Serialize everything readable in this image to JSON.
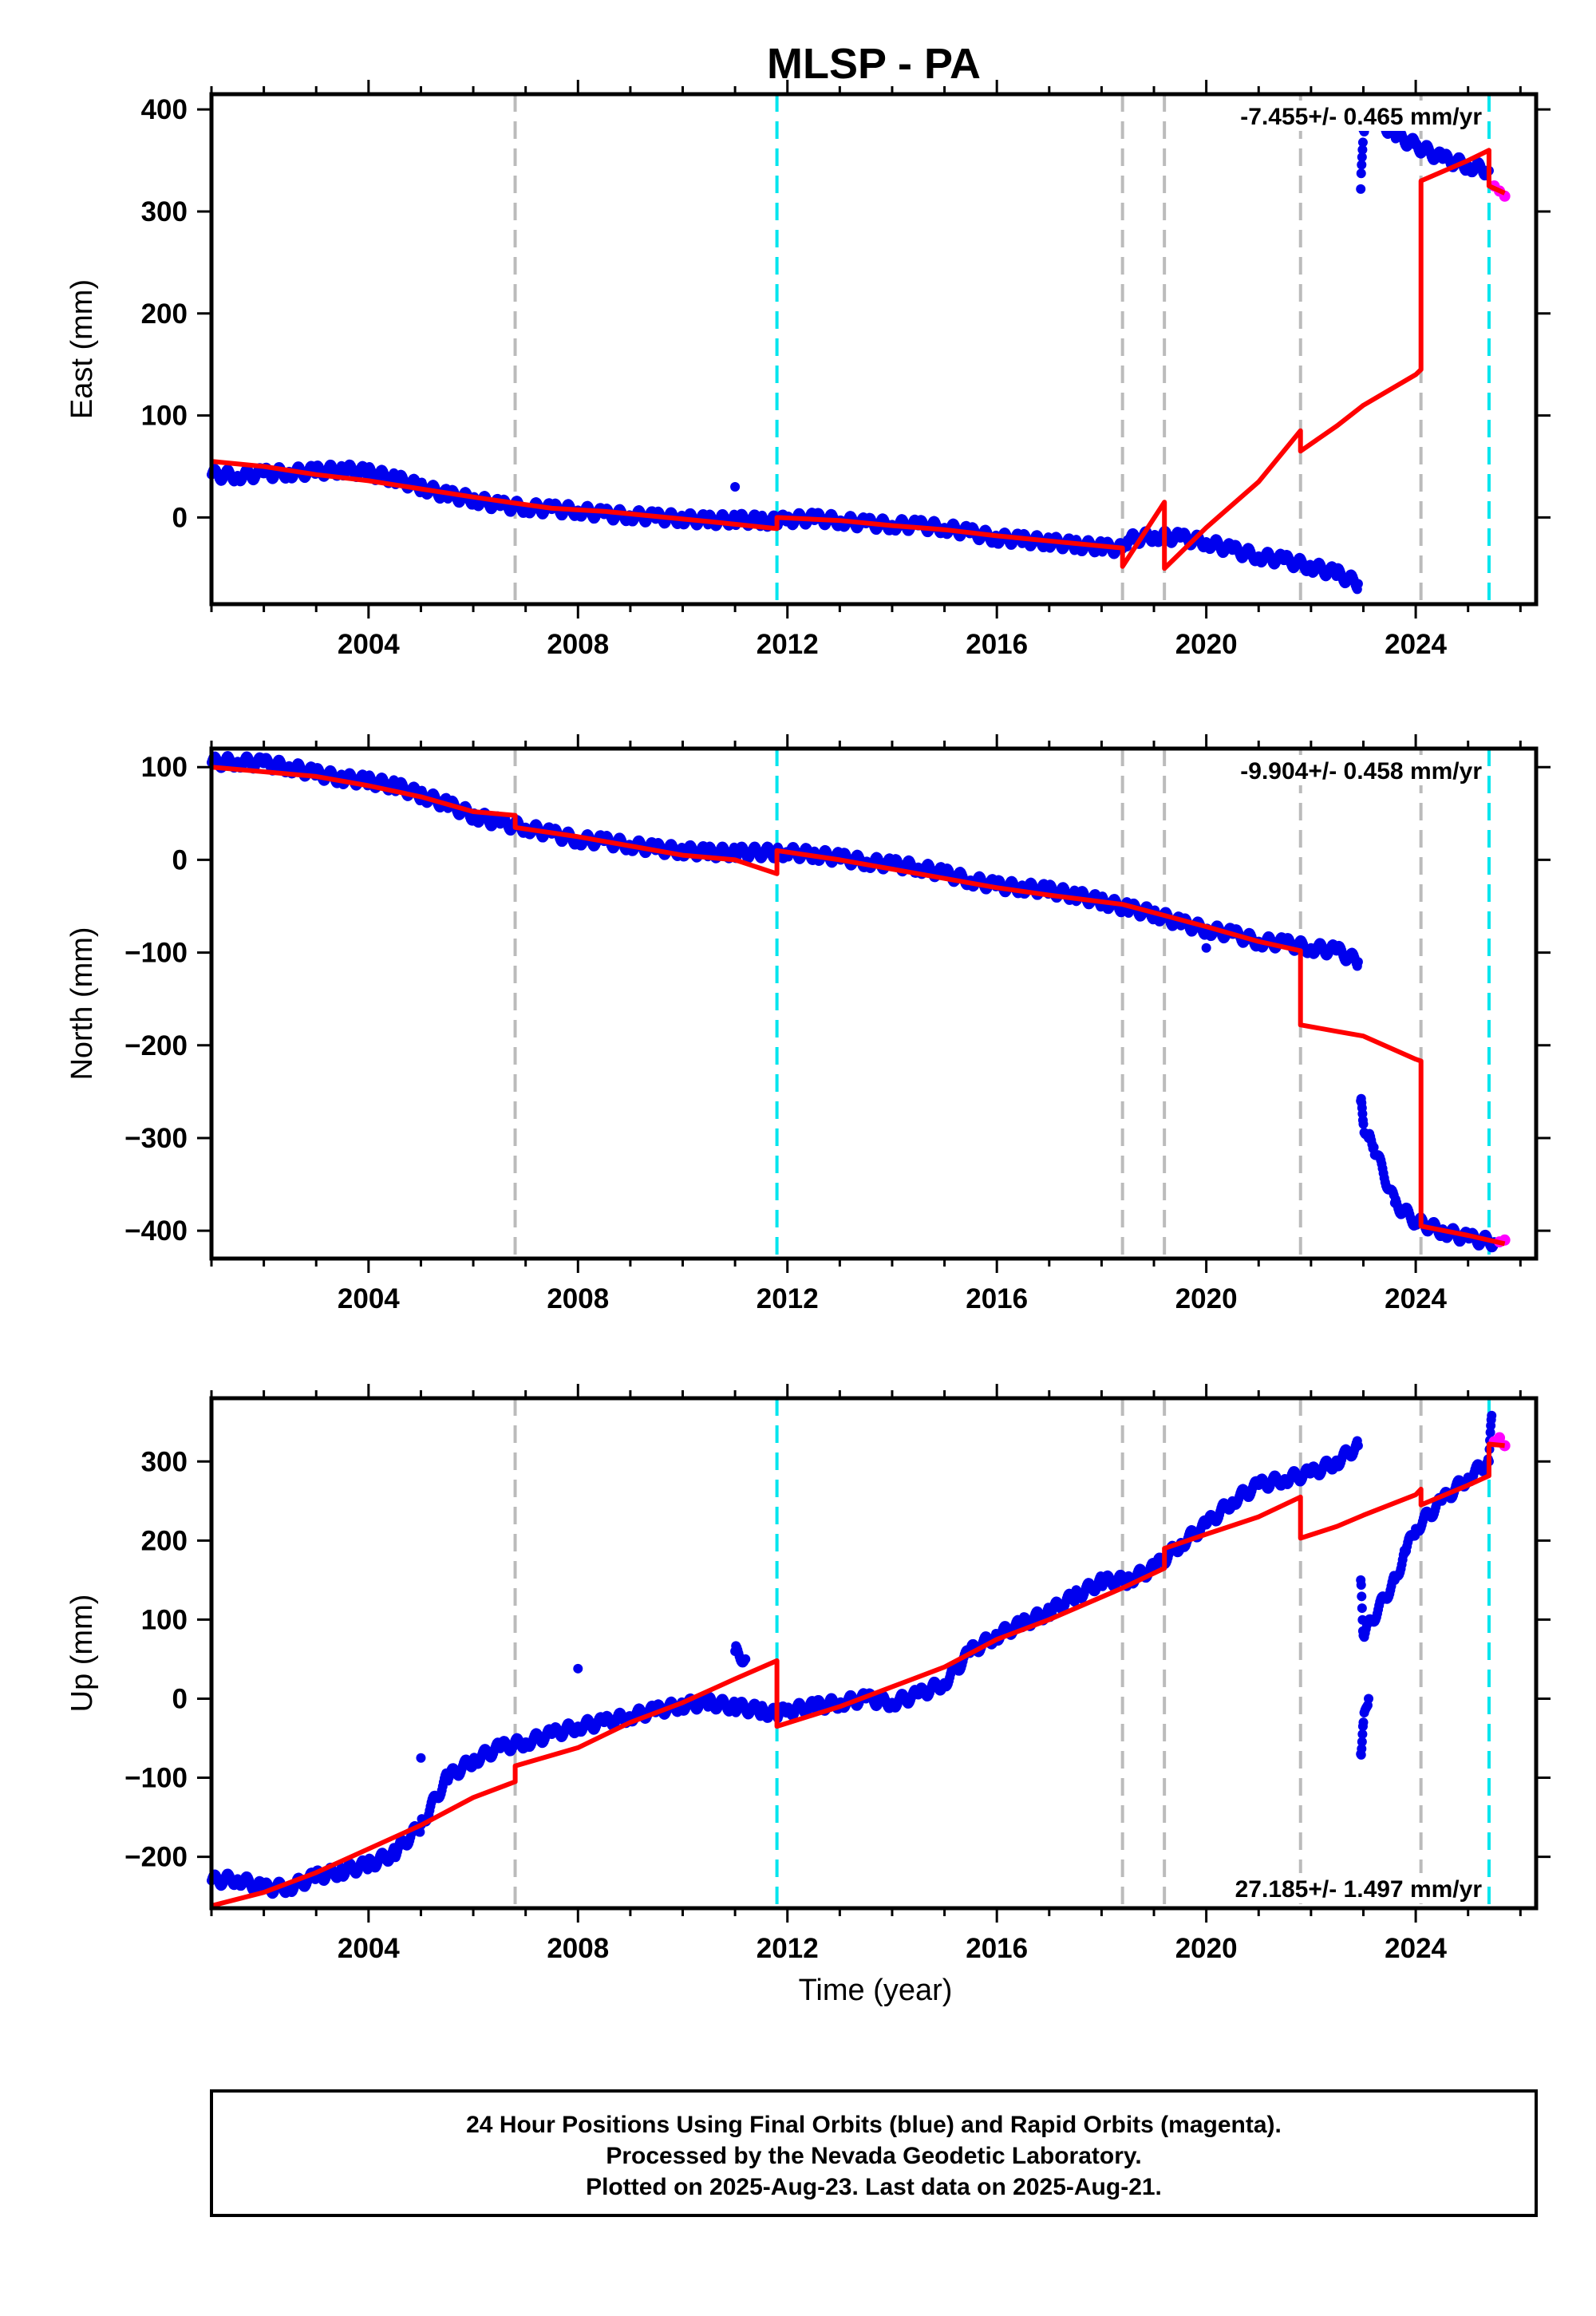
{
  "chart_data": [
    {
      "type": "scatter",
      "title": "MLSP - PA",
      "ylabel": "East (mm)",
      "xlabel": "",
      "xlim": [
        2001.0,
        2026.3
      ],
      "ylim": [
        -85,
        415
      ],
      "xticks": [
        2004,
        2008,
        2012,
        2016,
        2020,
        2024
      ],
      "xtick_labels": [
        "2004",
        "2008",
        "2012",
        "2016",
        "2020",
        "2024"
      ],
      "yticks": [
        0,
        100,
        200,
        300,
        400
      ],
      "ytick_labels": [
        "0",
        "100",
        "200",
        "300",
        "400"
      ],
      "rate_label": "-7.455+/- 0.465 mm/yr",
      "rate_position": "top-right",
      "grid": false,
      "gray_dashed_lines": [
        2006.8,
        2018.4,
        2019.2,
        2021.8,
        2024.1
      ],
      "cyan_dashed_lines": [
        2011.8,
        2025.4
      ],
      "final_orbits": [
        [
          2001.0,
          42
        ],
        [
          2001.5,
          41
        ],
        [
          2002.0,
          43
        ],
        [
          2002.5,
          44
        ],
        [
          2003.0,
          45
        ],
        [
          2003.5,
          47
        ],
        [
          2004.0,
          44
        ],
        [
          2004.5,
          38
        ],
        [
          2005.0,
          30
        ],
        [
          2005.5,
          22
        ],
        [
          2006.0,
          18
        ],
        [
          2006.5,
          12
        ],
        [
          2007.0,
          10
        ],
        [
          2007.5,
          8
        ],
        [
          2008.0,
          7
        ],
        [
          2008.5,
          3
        ],
        [
          2009.0,
          2
        ],
        [
          2009.5,
          0
        ],
        [
          2010.0,
          -1
        ],
        [
          2010.5,
          -3
        ],
        [
          2011.0,
          -2
        ],
        [
          2011.5,
          -3
        ],
        [
          2011.8,
          -4
        ],
        [
          2012.0,
          -2
        ],
        [
          2012.5,
          -1
        ],
        [
          2013.0,
          -3
        ],
        [
          2013.5,
          -6
        ],
        [
          2014.0,
          -7
        ],
        [
          2014.5,
          -8
        ],
        [
          2015.0,
          -10
        ],
        [
          2015.5,
          -15
        ],
        [
          2016.0,
          -20
        ],
        [
          2016.5,
          -22
        ],
        [
          2017.0,
          -24
        ],
        [
          2017.5,
          -27
        ],
        [
          2018.0,
          -29
        ],
        [
          2018.4,
          -31
        ],
        [
          2018.5,
          -22
        ],
        [
          2019.0,
          -18
        ],
        [
          2019.5,
          -20
        ],
        [
          2020.0,
          -24
        ],
        [
          2020.5,
          -32
        ],
        [
          2021.0,
          -38
        ],
        [
          2021.5,
          -42
        ],
        [
          2022.0,
          -48
        ],
        [
          2022.5,
          -55
        ],
        [
          2022.9,
          -65
        ],
        [
          2022.95,
          322
        ],
        [
          2023.0,
          380
        ],
        [
          2023.1,
          400
        ],
        [
          2023.6,
          375
        ],
        [
          2024.0,
          365
        ],
        [
          2024.5,
          352
        ],
        [
          2025.0,
          345
        ],
        [
          2025.4,
          340
        ],
        [
          2011.0,
          30
        ]
      ],
      "rapid_orbits": [
        [
          2025.5,
          325
        ],
        [
          2025.6,
          320
        ],
        [
          2025.7,
          315
        ]
      ],
      "model": [
        [
          2001.0,
          55
        ],
        [
          2002.0,
          50
        ],
        [
          2003.0,
          42
        ],
        [
          2004.0,
          36
        ],
        [
          2005.0,
          28
        ],
        [
          2006.0,
          20
        ],
        [
          2006.8,
          14
        ],
        [
          2007.5,
          9
        ],
        [
          2008.5,
          6
        ],
        [
          2009.5,
          1
        ],
        [
          2010.5,
          -4
        ],
        [
          2011.8,
          -11
        ],
        [
          2011.8,
          0
        ],
        [
          2013.0,
          -3
        ],
        [
          2014.0,
          -8
        ],
        [
          2015.0,
          -12
        ],
        [
          2016.0,
          -18
        ],
        [
          2017.0,
          -23
        ],
        [
          2018.4,
          -30
        ],
        [
          2018.4,
          -48
        ],
        [
          2019.2,
          15
        ],
        [
          2019.2,
          -50
        ],
        [
          2020.0,
          -10
        ],
        [
          2021.0,
          35
        ],
        [
          2021.8,
          85
        ],
        [
          2021.8,
          65
        ],
        [
          2022.5,
          90
        ],
        [
          2023.0,
          110
        ],
        [
          2024.0,
          140
        ],
        [
          2024.1,
          145
        ],
        [
          2024.1,
          330
        ],
        [
          2025.0,
          350
        ],
        [
          2025.4,
          360
        ],
        [
          2025.4,
          325
        ],
        [
          2025.7,
          318
        ]
      ]
    },
    {
      "type": "scatter",
      "title": "",
      "ylabel": "North (mm)",
      "xlabel": "",
      "xlim": [
        2001.0,
        2026.3
      ],
      "ylim": [
        -430,
        120
      ],
      "xticks": [
        2004,
        2008,
        2012,
        2016,
        2020,
        2024
      ],
      "xtick_labels": [
        "2004",
        "2008",
        "2012",
        "2016",
        "2020",
        "2024"
      ],
      "yticks": [
        100,
        0,
        -100,
        -200,
        -300,
        -400
      ],
      "ytick_labels": [
        "100",
        "0",
        "−100",
        "−200",
        "−300",
        "−400"
      ],
      "rate_label": "-9.904+/- 0.458 mm/yr",
      "rate_position": "top-right",
      "grid": false,
      "gray_dashed_lines": [
        2006.8,
        2018.4,
        2019.2,
        2021.8,
        2024.1
      ],
      "cyan_dashed_lines": [
        2011.8,
        2025.4
      ],
      "final_orbits": [
        [
          2001.0,
          105
        ],
        [
          2001.5,
          106
        ],
        [
          2002.0,
          104
        ],
        [
          2002.5,
          100
        ],
        [
          2003.0,
          93
        ],
        [
          2003.5,
          88
        ],
        [
          2004.0,
          85
        ],
        [
          2004.5,
          80
        ],
        [
          2005.0,
          70
        ],
        [
          2005.5,
          60
        ],
        [
          2006.0,
          48
        ],
        [
          2006.5,
          40
        ],
        [
          2007.0,
          35
        ],
        [
          2007.5,
          28
        ],
        [
          2008.0,
          22
        ],
        [
          2008.5,
          20
        ],
        [
          2009.0,
          16
        ],
        [
          2009.5,
          12
        ],
        [
          2010.0,
          10
        ],
        [
          2010.5,
          8
        ],
        [
          2011.0,
          8
        ],
        [
          2011.8,
          8
        ],
        [
          2012.0,
          8
        ],
        [
          2012.5,
          6
        ],
        [
          2013.0,
          2
        ],
        [
          2013.5,
          -2
        ],
        [
          2014.0,
          -5
        ],
        [
          2014.5,
          -8
        ],
        [
          2015.0,
          -15
        ],
        [
          2015.5,
          -22
        ],
        [
          2016.0,
          -28
        ],
        [
          2016.5,
          -30
        ],
        [
          2017.0,
          -33
        ],
        [
          2017.5,
          -38
        ],
        [
          2018.0,
          -45
        ],
        [
          2018.5,
          -52
        ],
        [
          2019.0,
          -58
        ],
        [
          2019.5,
          -68
        ],
        [
          2020.0,
          -75
        ],
        [
          2020.5,
          -80
        ],
        [
          2021.0,
          -88
        ],
        [
          2021.5,
          -90
        ],
        [
          2022.0,
          -95
        ],
        [
          2022.5,
          -98
        ],
        [
          2022.9,
          -110
        ],
        [
          2022.95,
          -260
        ],
        [
          2023.0,
          -285
        ],
        [
          2023.1,
          -300
        ],
        [
          2023.2,
          -310
        ],
        [
          2023.6,
          -370
        ],
        [
          2024.0,
          -390
        ],
        [
          2024.5,
          -400
        ],
        [
          2025.0,
          -408
        ],
        [
          2025.5,
          -412
        ],
        [
          2020.0,
          -95
        ]
      ],
      "rapid_orbits": [
        [
          2025.6,
          -412
        ],
        [
          2025.7,
          -410
        ]
      ],
      "model": [
        [
          2001.0,
          100
        ],
        [
          2002.0,
          95
        ],
        [
          2003.0,
          90
        ],
        [
          2004.0,
          80
        ],
        [
          2005.0,
          68
        ],
        [
          2006.0,
          52
        ],
        [
          2006.8,
          48
        ],
        [
          2006.8,
          35
        ],
        [
          2008.0,
          25
        ],
        [
          2009.0,
          15
        ],
        [
          2010.0,
          5
        ],
        [
          2011.0,
          0
        ],
        [
          2011.8,
          -15
        ],
        [
          2011.8,
          10
        ],
        [
          2013.0,
          0
        ],
        [
          2014.0,
          -10
        ],
        [
          2015.0,
          -20
        ],
        [
          2016.0,
          -30
        ],
        [
          2017.0,
          -38
        ],
        [
          2018.4,
          -48
        ],
        [
          2019.2,
          -60
        ],
        [
          2020.0,
          -72
        ],
        [
          2021.0,
          -88
        ],
        [
          2021.8,
          -98
        ],
        [
          2021.8,
          -178
        ],
        [
          2022.5,
          -185
        ],
        [
          2023.0,
          -190
        ],
        [
          2024.0,
          -215
        ],
        [
          2024.1,
          -217
        ],
        [
          2024.1,
          -395
        ],
        [
          2025.0,
          -405
        ],
        [
          2025.7,
          -414
        ]
      ]
    },
    {
      "type": "scatter",
      "title": "",
      "ylabel": "Up (mm)",
      "xlabel": "Time (year)",
      "xlim": [
        2001.0,
        2026.3
      ],
      "ylim": [
        -265,
        380
      ],
      "xticks": [
        2004,
        2008,
        2012,
        2016,
        2020,
        2024
      ],
      "xtick_labels": [
        "2004",
        "2008",
        "2012",
        "2016",
        "2020",
        "2024"
      ],
      "yticks": [
        300,
        200,
        100,
        0,
        -100,
        -200
      ],
      "ytick_labels": [
        "300",
        "200",
        "100",
        "0",
        "−100",
        "−200"
      ],
      "rate_label": "27.185+/- 1.497 mm/yr",
      "rate_position": "bottom-right",
      "grid": false,
      "gray_dashed_lines": [
        2006.8,
        2018.4,
        2019.2,
        2021.8,
        2024.1
      ],
      "cyan_dashed_lines": [
        2011.8,
        2025.4
      ],
      "final_orbits": [
        [
          2001.0,
          -230
        ],
        [
          2001.5,
          -228
        ],
        [
          2002.0,
          -240
        ],
        [
          2002.5,
          -238
        ],
        [
          2003.0,
          -225
        ],
        [
          2003.5,
          -218
        ],
        [
          2004.0,
          -210
        ],
        [
          2004.5,
          -195
        ],
        [
          2005.0,
          -160
        ],
        [
          2005.5,
          -100
        ],
        [
          2006.0,
          -78
        ],
        [
          2006.5,
          -62
        ],
        [
          2007.0,
          -55
        ],
        [
          2007.5,
          -45
        ],
        [
          2008.0,
          -35
        ],
        [
          2008.5,
          -30
        ],
        [
          2009.0,
          -22
        ],
        [
          2009.5,
          -15
        ],
        [
          2010.0,
          -8
        ],
        [
          2010.5,
          -5
        ],
        [
          2011.0,
          -10
        ],
        [
          2011.5,
          -15
        ],
        [
          2011.8,
          -20
        ],
        [
          2012.0,
          -15
        ],
        [
          2012.5,
          -10
        ],
        [
          2013.0,
          -5
        ],
        [
          2013.5,
          0
        ],
        [
          2014.0,
          -5
        ],
        [
          2014.5,
          5
        ],
        [
          2015.0,
          20
        ],
        [
          2015.5,
          60
        ],
        [
          2016.0,
          80
        ],
        [
          2016.5,
          95
        ],
        [
          2017.0,
          110
        ],
        [
          2017.5,
          130
        ],
        [
          2018.0,
          148
        ],
        [
          2018.5,
          150
        ],
        [
          2019.0,
          165
        ],
        [
          2019.5,
          195
        ],
        [
          2020.0,
          220
        ],
        [
          2020.5,
          250
        ],
        [
          2021.0,
          270
        ],
        [
          2021.5,
          278
        ],
        [
          2022.0,
          285
        ],
        [
          2022.5,
          300
        ],
        [
          2022.9,
          320
        ],
        [
          2022.95,
          -70
        ],
        [
          2023.0,
          -30
        ],
        [
          2023.1,
          0
        ],
        [
          2022.95,
          150
        ],
        [
          2023.0,
          80
        ],
        [
          2023.6,
          150
        ],
        [
          2023.8,
          185
        ],
        [
          2024.0,
          215
        ],
        [
          2024.5,
          250
        ],
        [
          2025.0,
          280
        ],
        [
          2025.4,
          300
        ],
        [
          2025.45,
          358
        ],
        [
          2008.0,
          38
        ],
        [
          2005.0,
          -75
        ],
        [
          2011.0,
          60
        ],
        [
          2011.2,
          50
        ]
      ],
      "rapid_orbits": [
        [
          2025.5,
          325
        ],
        [
          2025.6,
          330
        ],
        [
          2025.7,
          320
        ]
      ],
      "model": [
        [
          2001.0,
          -262
        ],
        [
          2002.0,
          -245
        ],
        [
          2003.0,
          -220
        ],
        [
          2004.0,
          -190
        ],
        [
          2005.0,
          -160
        ],
        [
          2006.0,
          -125
        ],
        [
          2006.8,
          -105
        ],
        [
          2006.8,
          -85
        ],
        [
          2008.0,
          -62
        ],
        [
          2009.0,
          -30
        ],
        [
          2010.0,
          -5
        ],
        [
          2011.0,
          25
        ],
        [
          2011.8,
          48
        ],
        [
          2011.8,
          -35
        ],
        [
          2013.0,
          -10
        ],
        [
          2014.0,
          15
        ],
        [
          2015.0,
          40
        ],
        [
          2016.0,
          75
        ],
        [
          2017.0,
          100
        ],
        [
          2018.4,
          140
        ],
        [
          2019.2,
          165
        ],
        [
          2019.2,
          190
        ],
        [
          2020.0,
          208
        ],
        [
          2021.0,
          230
        ],
        [
          2021.8,
          255
        ],
        [
          2021.8,
          203
        ],
        [
          2022.5,
          218
        ],
        [
          2023.0,
          232
        ],
        [
          2024.0,
          258
        ],
        [
          2024.1,
          265
        ],
        [
          2024.1,
          245
        ],
        [
          2025.0,
          270
        ],
        [
          2025.4,
          282
        ],
        [
          2025.4,
          322
        ],
        [
          2025.7,
          320
        ]
      ]
    }
  ],
  "footer": {
    "line1": "24 Hour Positions Using Final Orbits (blue) and Rapid Orbits (magenta).",
    "line2": "Processed by the Nevada Geodetic Laboratory.",
    "line3": "Plotted on 2025-Aug-23. Last data on 2025-Aug-21."
  },
  "colors": {
    "final": "#0000ee",
    "rapid": "#ff00ff",
    "model": "#ff0000",
    "gray_line": "#bbbbbb",
    "cyan_line": "#00e5ee"
  }
}
